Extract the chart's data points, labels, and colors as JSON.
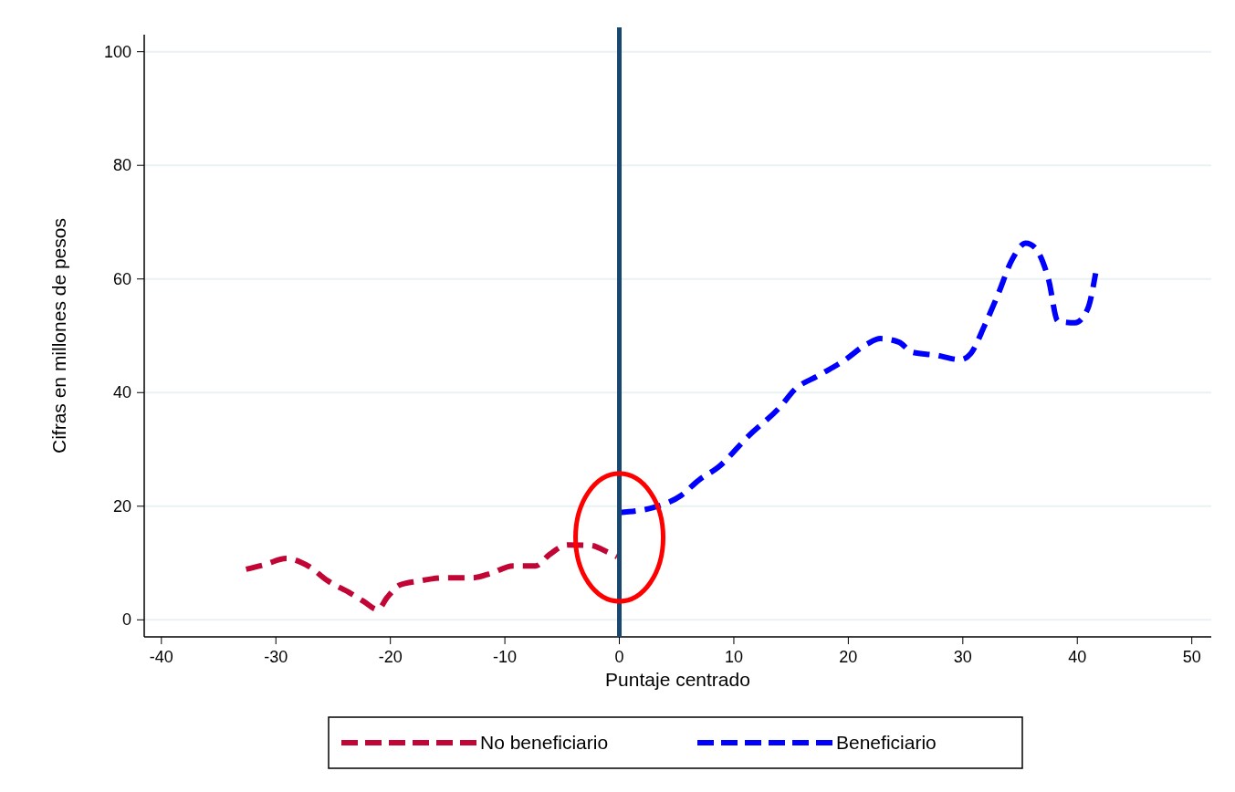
{
  "chart_data": {
    "type": "line",
    "xlabel": "Puntaje centrado",
    "ylabel": "Cifras en millones de pesos",
    "xlim": [
      -41.5,
      51.7
    ],
    "xticks": [
      -40,
      -30,
      -20,
      -10,
      0,
      10,
      20,
      30,
      40,
      50
    ],
    "ylim": [
      -3,
      103
    ],
    "yticks": [
      0,
      20,
      40,
      60,
      80,
      100
    ],
    "grid": "y",
    "legend": "bottom",
    "line_style": "dashed",
    "ref_lines": [
      {
        "axis": "x",
        "value": 0,
        "color": "#1a476f"
      }
    ],
    "series": [
      {
        "name": "No beneficiario",
        "color": "#c10534",
        "x": [
          -32.6,
          -31,
          -29.1,
          -27.1,
          -25.5,
          -23.5,
          -22.3,
          -21.1,
          -20.3,
          -19.2,
          -17.6,
          -15.2,
          -12.8,
          -11.2,
          -9.3,
          -7.3,
          -6.1,
          -4.5,
          -2.5,
          -1,
          -0.2
        ],
        "values": [
          8.9,
          9.7,
          10.8,
          9.4,
          6.9,
          4.7,
          3.2,
          1.8,
          3.9,
          6.1,
          6.8,
          7.4,
          7.4,
          8.2,
          9.5,
          9.5,
          11.5,
          13.2,
          13.1,
          11.9,
          11.1
        ]
      },
      {
        "name": "Beneficiario",
        "color": "#0000ff",
        "x": [
          0,
          3,
          5.4,
          7,
          8.6,
          11.3,
          14.1,
          15.3,
          17.3,
          19.6,
          21.6,
          22.8,
          24.4,
          25.6,
          27.6,
          29.8,
          30.7,
          31.9,
          33.1,
          34.3,
          35.5,
          36.3,
          37.5,
          38.3,
          39.8,
          40.9,
          41.6
        ],
        "values": [
          18.9,
          19.8,
          21.9,
          24.7,
          26.8,
          32.4,
          37.6,
          40.5,
          42.9,
          45.6,
          48.5,
          49.5,
          48.9,
          47.1,
          46.6,
          45.8,
          46.9,
          51.8,
          57.4,
          63.4,
          66.3,
          65.5,
          59.8,
          52.6,
          52.3,
          54.7,
          61
        ]
      }
    ]
  }
}
